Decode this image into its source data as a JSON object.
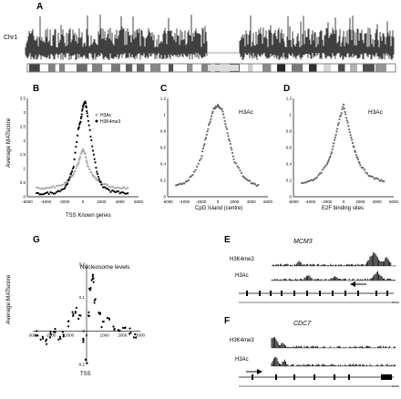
{
  "panels": {
    "A": {
      "letter": "A",
      "track_label": "Chr1"
    },
    "B": {
      "letter": "B",
      "ylabel": "Average MATscore",
      "xlabel": "TSS Known genes",
      "legend": [
        "H3Ac",
        "H3K4me3"
      ],
      "yticks": [
        "0",
        "0.5",
        "1",
        "1.5",
        "2",
        "2.5",
        "3",
        "3.5"
      ],
      "xticks": [
        "-6000",
        "-4000",
        "-2000",
        "0",
        "2000",
        "4000",
        "6000"
      ]
    },
    "C": {
      "letter": "C",
      "label": "H3Ac",
      "xlabel": "CpG Island (centre)",
      "yticks": [
        "0",
        "0.2",
        "0.4",
        "0.6",
        "0.8",
        "1",
        "1.2"
      ],
      "xticks": [
        "-6000",
        "-4000",
        "-2000",
        "0",
        "2000",
        "4000",
        "6000"
      ]
    },
    "D": {
      "letter": "D",
      "label": "H3Ac",
      "xlabel": "E2F binding sites",
      "yticks": [
        "0",
        "0.2",
        "0.4",
        "0.6",
        "0.8",
        "1",
        "1.2"
      ],
      "xticks": [
        "-6000",
        "-4000",
        "-2000",
        "0",
        "2000",
        "4000",
        "6000"
      ]
    },
    "E": {
      "letter": "E",
      "gene": "MCM3",
      "tracks": [
        "H3K4me3",
        "H3Ac"
      ]
    },
    "F": {
      "letter": "F",
      "gene": "CDC7",
      "tracks": [
        "H3K4me3",
        "H3Ac"
      ]
    },
    "G": {
      "letter": "G",
      "label": "Nucleosome levels",
      "ylabel": "Average MATscore",
      "xlabel": "TSS",
      "yticks": [
        "0.2",
        "0.1",
        "0",
        "-0.1"
      ],
      "xticks": [
        "-3000",
        "-2000",
        "-1000",
        "0",
        "1000",
        "2000",
        "3000"
      ]
    }
  },
  "chart_data": [
    {
      "type": "line",
      "panel": "B",
      "x": [
        -5000,
        -4000,
        -3000,
        -2000,
        -1500,
        -1000,
        -500,
        -250,
        0,
        250,
        500,
        1000,
        1500,
        2000,
        3000,
        4000,
        5000
      ],
      "series": [
        {
          "name": "H3Ac",
          "values": [
            0.3,
            0.3,
            0.35,
            0.45,
            0.6,
            0.8,
            1.2,
            1.5,
            1.7,
            1.5,
            1.1,
            0.8,
            0.6,
            0.5,
            0.35,
            0.3,
            0.3
          ]
        },
        {
          "name": "H3K4me3",
          "values": [
            0.1,
            0.12,
            0.15,
            0.3,
            0.6,
            1.1,
            2.4,
            2.7,
            3.2,
            3.4,
            2.9,
            1.8,
            0.9,
            0.4,
            0.2,
            0.15,
            0.1
          ]
        }
      ],
      "xlabel": "TSS Known genes",
      "ylabel": "Average MATscore",
      "xlim": [
        -6000,
        6000
      ],
      "ylim": [
        0,
        3.5
      ]
    },
    {
      "type": "line",
      "panel": "C",
      "x": [
        -5000,
        -4000,
        -3000,
        -2000,
        -1500,
        -1000,
        -500,
        0,
        500,
        1000,
        1500,
        2000,
        3000,
        4000,
        5000
      ],
      "series": [
        {
          "name": "H3Ac",
          "values": [
            0.15,
            0.2,
            0.3,
            0.55,
            0.8,
            1.05,
            1.25,
            1.3,
            1.25,
            1.0,
            0.75,
            0.5,
            0.3,
            0.2,
            0.15
          ]
        }
      ],
      "xlabel": "CpG Island (centre)",
      "xlim": [
        -6000,
        6000
      ],
      "ylim": [
        0,
        1.4
      ]
    },
    {
      "type": "line",
      "panel": "D",
      "x": [
        -5000,
        -4000,
        -3000,
        -2000,
        -1500,
        -1000,
        -500,
        0,
        500,
        1000,
        1500,
        2000,
        3000,
        4000,
        5000
      ],
      "series": [
        {
          "name": "H3Ac",
          "values": [
            0.2,
            0.22,
            0.3,
            0.45,
            0.6,
            0.85,
            1.1,
            1.3,
            1.05,
            0.8,
            0.6,
            0.45,
            0.3,
            0.25,
            0.2
          ]
        }
      ],
      "xlabel": "E2F binding sites",
      "xlim": [
        -6000,
        6000
      ],
      "ylim": [
        0,
        1.4
      ]
    },
    {
      "type": "scatter",
      "panel": "G",
      "x": [
        -2800,
        -2500,
        -2200,
        -2000,
        -1800,
        -1500,
        -1300,
        -1000,
        -800,
        -600,
        -400,
        -200,
        0,
        100,
        200,
        300,
        400,
        500,
        700,
        900,
        1200,
        1500,
        1800,
        2100,
        2400,
        2700
      ],
      "series": [
        {
          "name": "Nucleosome levels",
          "values": [
            -0.01,
            -0.02,
            -0.03,
            -0.01,
            0.0,
            -0.02,
            -0.01,
            0.02,
            0.05,
            0.06,
            0.04,
            -0.03,
            -0.09,
            0.05,
            0.12,
            0.16,
            0.15,
            0.09,
            0.05,
            0.02,
            0.03,
            0.01,
            0.0,
            0.01,
            0.0,
            -0.01
          ]
        }
      ],
      "xlabel": "TSS",
      "ylabel": "Average MATscore",
      "xlim": [
        -3000,
        3000
      ],
      "ylim": [
        -0.1,
        0.2
      ]
    }
  ]
}
